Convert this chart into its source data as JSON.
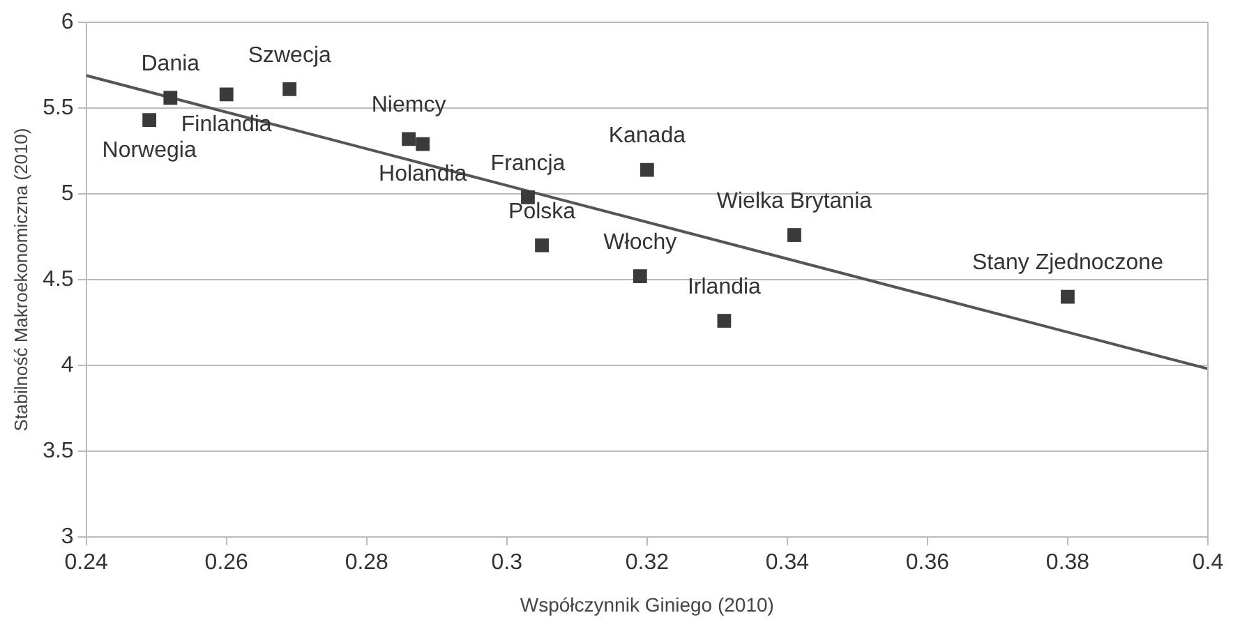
{
  "chart_data": {
    "type": "scatter",
    "xlabel": "Współczynnik Giniego (2010)",
    "ylabel": "Stabilność Makroekonomiczna (2010)",
    "series": [
      {
        "color": "#3a3a3a",
        "marker": "square",
        "x": [
          0.252,
          0.269,
          0.26,
          0.249,
          0.286,
          0.288,
          0.303,
          0.305,
          0.32,
          0.319,
          0.341,
          0.331,
          0.38
        ],
        "values": [
          5.56,
          5.61,
          5.58,
          5.43,
          5.32,
          5.29,
          4.98,
          4.7,
          5.14,
          4.52,
          4.76,
          4.26,
          4.4
        ]
      },
      {
        "type": "line",
        "color": "#555555",
        "marker": "none",
        "x": [
          0.24,
          0.4
        ],
        "values": [
          5.69,
          3.98
        ]
      }
    ],
    "annotations": [
      {
        "text": "Dania",
        "x": 0.252,
        "y": 5.56
      },
      {
        "text": "Szwecja",
        "x": 0.269,
        "y": 5.61
      },
      {
        "text": "Finlandia",
        "x": 0.26,
        "y": 5.58
      },
      {
        "text": "Norwegia",
        "x": 0.249,
        "y": 5.43
      },
      {
        "text": "Niemcy",
        "x": 0.286,
        "y": 5.32
      },
      {
        "text": "Holandia",
        "x": 0.288,
        "y": 5.29
      },
      {
        "text": "Francja",
        "x": 0.303,
        "y": 4.98
      },
      {
        "text": "Polska",
        "x": 0.305,
        "y": 4.7
      },
      {
        "text": "Kanada",
        "x": 0.32,
        "y": 5.14
      },
      {
        "text": "Włochy",
        "x": 0.319,
        "y": 4.52
      },
      {
        "text": "Wielka Brytania",
        "x": 0.341,
        "y": 4.76
      },
      {
        "text": "Irlandia",
        "x": 0.331,
        "y": 4.26
      },
      {
        "text": "Stany Zjednoczone",
        "x": 0.38,
        "y": 4.4
      }
    ],
    "xlim": [
      0.24,
      0.4
    ],
    "xticks": [
      0.24,
      0.26,
      0.28,
      0.3,
      0.32,
      0.34,
      0.36,
      0.38,
      0.4
    ],
    "ylim": [
      3,
      6
    ],
    "yticks": [
      3,
      3.5,
      4,
      4.5,
      5,
      5.5,
      6
    ],
    "grid": "y",
    "legend": false
  }
}
